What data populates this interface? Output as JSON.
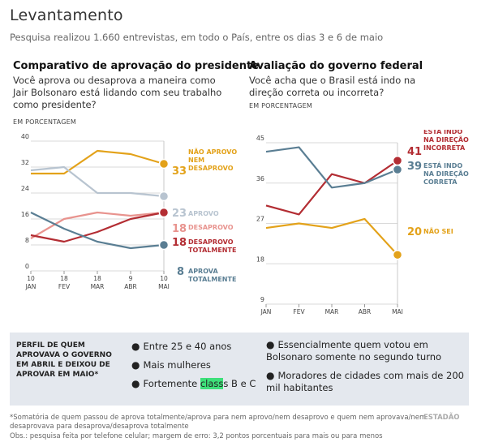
{
  "header": {
    "title": "Levantamento",
    "subtitle": "Pesquisa realizou 1.660 entrevistas, em todo o País, entre os dias 3 e 6 de maio"
  },
  "left": {
    "title": "Comparativo de aprovação do presidente",
    "question": "Você aprova ou desaprova a maneira como Jair Bolsonaro está lidando com seu trabalho como presidente?",
    "unit": "EM PORCENTAGEM"
  },
  "right": {
    "title": "Avaliação do governo federal",
    "question": "Você acha que o Brasil está indo na direção correta ou incorreta?",
    "unit": "EM PORCENTAGEM"
  },
  "profile": {
    "title": "PERFIL DE QUEM APROVAVA O GOVERNO EM ABRIL E DEIXOU DE APROVAR EM MAIO*",
    "bullet_char": "●",
    "bullets_col1": [
      "Entre 25 e 40 anos",
      "Mais mulheres"
    ],
    "bullet3_pre": "Fortemente ",
    "bullet3_hl": "class",
    "bullet3_post": "s B e C",
    "bullets_col2": [
      "Essencialmente quem votou em Bolsonaro somente no segundo turno",
      "Moradores de cidades com mais de 200 mil habitantes"
    ]
  },
  "footnotes": {
    "note1": "*Somatória de quem passou de aprova totalmente/aprova para nem aprovo/nem desaprovo e quem nem aprovava/nem desaprovava para desaprova/desaprova totalmente",
    "note2": "Obs.: pesquisa feita por telefone celular; margem de erro: 3,2 pontos porcentuais para mais ou para menos",
    "brand": "ESTADÃO"
  },
  "chart_data": [
    {
      "type": "line",
      "x": [
        "10 JAN",
        "18 FEV",
        "18 MAR",
        "9 ABR",
        "10 MAI"
      ],
      "ylim": [
        0,
        40
      ],
      "yticks": [
        0,
        8,
        16,
        24,
        32,
        40
      ],
      "grid": true,
      "series": [
        {
          "name": "NÃO APROVO NEM DESAPROVO",
          "color": "#e3a21a",
          "values": [
            30,
            30,
            37,
            36,
            33
          ],
          "end_label": "33"
        },
        {
          "name": "APROVO",
          "color": "#b8c4d0",
          "values": [
            31,
            32,
            24,
            24,
            23
          ],
          "end_label": "23"
        },
        {
          "name": "DESAPROVO",
          "color": "#e8938e",
          "values": [
            10,
            16,
            18,
            17,
            18
          ],
          "end_label": "18"
        },
        {
          "name": "DESAPROVO TOTALMENTE",
          "color": "#b32d33",
          "values": [
            11,
            9,
            12,
            16,
            18
          ],
          "end_label": "18"
        },
        {
          "name": "APROVA TOTALMENTE",
          "color": "#5a7e93",
          "values": [
            18,
            13,
            9,
            7,
            8
          ],
          "end_label": "8"
        }
      ]
    },
    {
      "type": "line",
      "x": [
        "JAN",
        "FEV",
        "MAR",
        "ABR",
        "MAI"
      ],
      "ylim": [
        9,
        45
      ],
      "yticks": [
        9,
        18,
        27,
        36,
        45
      ],
      "grid": true,
      "series": [
        {
          "name": "ESTÁ INDO NA DIREÇÃO INCORRETA",
          "color": "#b32d33",
          "values": [
            31,
            29,
            38,
            36,
            41
          ],
          "end_label": "41"
        },
        {
          "name": "ESTÁ INDO NA DIREÇÃO CORRETA",
          "color": "#5a7e93",
          "values": [
            43,
            44,
            35,
            36,
            39
          ],
          "end_label": "39"
        },
        {
          "name": "NÃO SEI",
          "color": "#e3a21a",
          "values": [
            26,
            27,
            26,
            28,
            20
          ],
          "end_label": "20"
        }
      ]
    }
  ]
}
